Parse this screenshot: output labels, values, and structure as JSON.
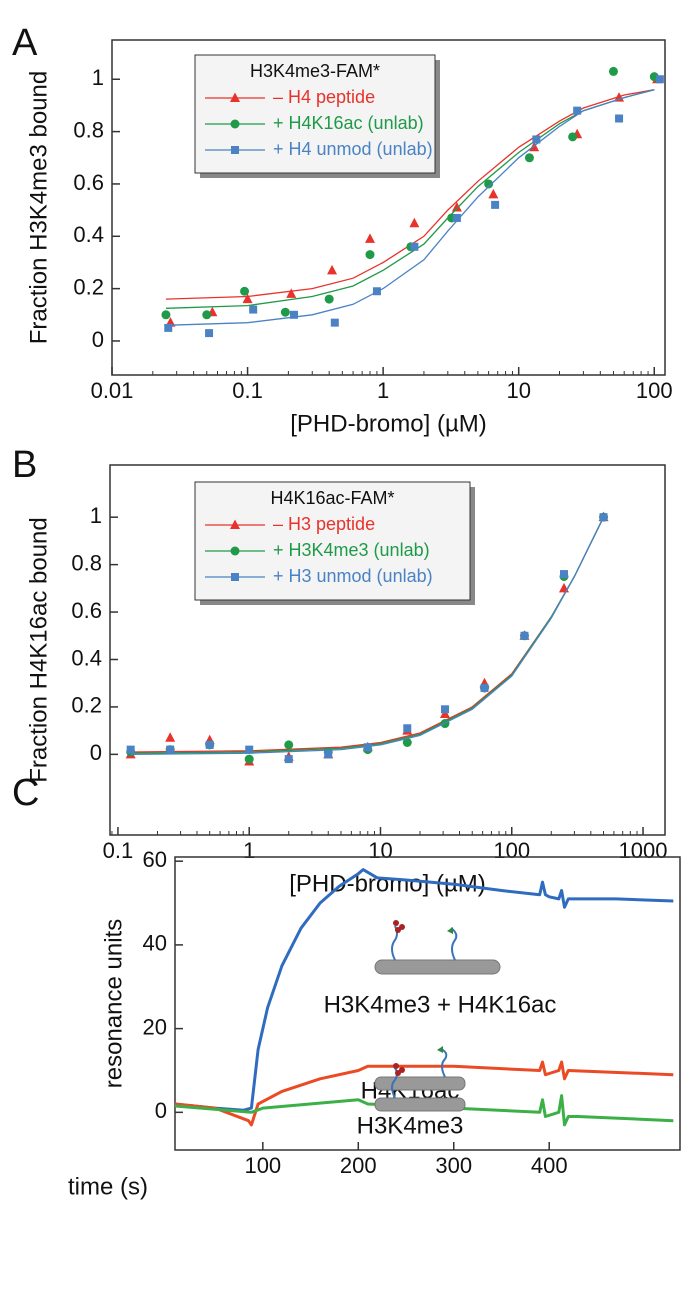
{
  "chart_data": [
    {
      "type": "scatter",
      "label": "A",
      "xscale": "log",
      "xlabel": "[PHD-bromo] (µM)",
      "ylabel": "Fraction H3K4me3 bound",
      "xlim": [
        0.01,
        120
      ],
      "xticks": [
        0.01,
        0.1,
        1,
        10,
        100
      ],
      "ylim": [
        -0.13,
        1.15
      ],
      "yticks": [
        0,
        0.2,
        0.4,
        0.6,
        0.8,
        1
      ],
      "grid": false,
      "legend": "upper left",
      "legend_title": "H3K4me3-FAM*",
      "series": [
        {
          "name": "– H4 peptide",
          "color": "#e8322b",
          "marker": "triangle",
          "x": [
            0.027,
            0.055,
            0.1,
            0.21,
            0.42,
            0.8,
            1.7,
            3.5,
            6.5,
            13,
            27,
            55,
            105
          ],
          "values": [
            0.07,
            0.11,
            0.16,
            0.18,
            0.27,
            0.39,
            0.45,
            0.51,
            0.56,
            0.74,
            0.79,
            0.93,
            1.0
          ],
          "fit": {
            "x": [
              0.025,
              0.1,
              0.3,
              0.6,
              1,
              2,
              3,
              5,
              10,
              20,
              30,
              60,
              100
            ],
            "values": [
              0.16,
              0.17,
              0.2,
              0.24,
              0.3,
              0.4,
              0.5,
              0.61,
              0.74,
              0.84,
              0.89,
              0.94,
              0.96
            ]
          }
        },
        {
          "name": "+ H4K16ac (unlab)",
          "color": "#1f9a48",
          "marker": "circle",
          "x": [
            0.025,
            0.05,
            0.095,
            0.19,
            0.4,
            0.8,
            1.6,
            3.2,
            6,
            12,
            25,
            50,
            100
          ],
          "values": [
            0.1,
            0.1,
            0.19,
            0.11,
            0.16,
            0.33,
            0.36,
            0.47,
            0.6,
            0.7,
            0.78,
            1.03,
            1.01
          ],
          "fit": {
            "x": [
              0.025,
              0.1,
              0.3,
              0.6,
              1,
              2,
              3,
              5,
              10,
              20,
              30,
              60,
              100
            ],
            "values": [
              0.125,
              0.135,
              0.17,
              0.21,
              0.27,
              0.37,
              0.47,
              0.59,
              0.72,
              0.83,
              0.88,
              0.93,
              0.96
            ]
          }
        },
        {
          "name": "+ H4 unmod (unlab)",
          "color": "#4a82c4",
          "marker": "square",
          "x": [
            0.026,
            0.052,
            0.11,
            0.22,
            0.44,
            0.9,
            1.7,
            3.5,
            6.7,
            13.5,
            27,
            55,
            110
          ],
          "values": [
            0.05,
            0.03,
            0.12,
            0.1,
            0.07,
            0.19,
            0.36,
            0.47,
            0.52,
            0.77,
            0.88,
            0.85,
            1.0
          ],
          "fit": {
            "x": [
              0.025,
              0.1,
              0.3,
              0.6,
              1,
              2,
              3,
              5,
              10,
              20,
              30,
              60,
              100
            ],
            "values": [
              0.06,
              0.07,
              0.1,
              0.14,
              0.2,
              0.31,
              0.42,
              0.55,
              0.7,
              0.82,
              0.88,
              0.93,
              0.96
            ]
          }
        }
      ]
    },
    {
      "type": "scatter",
      "label": "B",
      "xscale": "log",
      "xlabel": "[PHD-bromo] (µM)",
      "ylabel": "Fraction H4K16ac bound",
      "xlim": [
        0.087,
        1470
      ],
      "xticks": [
        0.1,
        1,
        10,
        100,
        1000
      ],
      "ylim": [
        -0.34,
        1.22
      ],
      "yticks": [
        0,
        0.2,
        0.4,
        0.6,
        0.8,
        1
      ],
      "grid": false,
      "legend": "upper left",
      "legend_title": "H4K16ac-FAM*",
      "series": [
        {
          "name": "– H3 peptide",
          "color": "#e8322b",
          "marker": "triangle",
          "x": [
            0.125,
            0.25,
            0.5,
            1,
            2,
            4,
            8,
            16,
            31,
            62,
            125,
            250,
            500
          ],
          "values": [
            0,
            0.07,
            0.06,
            -0.03,
            -0.01,
            0,
            0.03,
            0.1,
            0.17,
            0.3,
            0.5,
            0.7,
            1.0
          ],
          "fit": {
            "x": [
              0.125,
              1,
              5,
              10,
              20,
              50,
              100,
              200,
              300,
              500
            ],
            "values": [
              0.01,
              0.015,
              0.03,
              0.05,
              0.09,
              0.2,
              0.34,
              0.58,
              0.75,
              1.0
            ]
          }
        },
        {
          "name": "+ H3K4me3 (unlab)",
          "color": "#1f9a48",
          "marker": "circle",
          "x": [
            0.125,
            0.25,
            0.5,
            1,
            2,
            4,
            8,
            16,
            31,
            62,
            125,
            250,
            500
          ],
          "values": [
            0.01,
            0.02,
            0.04,
            -0.02,
            0.04,
            0.01,
            0.02,
            0.05,
            0.13,
            0.28,
            0.5,
            0.75,
            1.0
          ],
          "fit": {
            "x": [
              0.125,
              1,
              5,
              10,
              20,
              50,
              100,
              200,
              300,
              500
            ],
            "values": [
              0.005,
              0.01,
              0.025,
              0.045,
              0.085,
              0.195,
              0.335,
              0.58,
              0.75,
              1.0
            ]
          }
        },
        {
          "name": "+ H3 unmod (unlab)",
          "color": "#4a82c4",
          "marker": "square",
          "x": [
            0.125,
            0.25,
            0.5,
            1,
            2,
            4,
            8,
            16,
            31,
            62,
            125,
            250,
            500
          ],
          "values": [
            0.02,
            0.02,
            0.04,
            0.02,
            -0.02,
            0,
            0.03,
            0.11,
            0.19,
            0.28,
            0.5,
            0.76,
            1.0
          ],
          "fit": {
            "x": [
              0.125,
              1,
              5,
              10,
              20,
              50,
              100,
              200,
              300,
              500
            ],
            "values": [
              0.0,
              0.005,
              0.02,
              0.04,
              0.08,
              0.19,
              0.33,
              0.575,
              0.75,
              1.0
            ]
          }
        }
      ]
    },
    {
      "type": "line",
      "label": "C",
      "xlabel": "time (s)",
      "ylabel": "resonance units",
      "xlim": [
        8,
        537
      ],
      "xticks": [
        100,
        200,
        300,
        400
      ],
      "ylim": [
        -9,
        61
      ],
      "yticks": [
        0,
        20,
        40,
        60
      ],
      "grid": false,
      "annotations": [
        "H3K4me3 + H4K16ac",
        "H4K16ac",
        "H3K4me3"
      ],
      "series": [
        {
          "name": "H3K4me3 + H4K16ac",
          "color": "#2f6bbf",
          "x": [
            8,
            50,
            80,
            88,
            95,
            105,
            120,
            140,
            160,
            180,
            200,
            205,
            220,
            250,
            300,
            350,
            390,
            393,
            396,
            400,
            410,
            413,
            416,
            420,
            430,
            470,
            530
          ],
          "values": [
            2,
            1,
            0.5,
            1,
            15,
            25,
            35,
            44,
            50,
            54,
            57,
            58,
            56,
            55.5,
            54.5,
            53,
            52,
            55,
            52,
            51.5,
            51,
            53,
            49,
            51,
            51,
            51,
            50.5
          ]
        },
        {
          "name": "H4K16ac",
          "color": "#ea4a24",
          "x": [
            8,
            50,
            85,
            88,
            95,
            120,
            160,
            200,
            210,
            300,
            390,
            393,
            396,
            410,
            413,
            416,
            420,
            530
          ],
          "values": [
            2,
            1,
            -2,
            -3,
            2,
            5,
            8,
            10,
            11,
            11,
            10,
            12,
            9,
            10,
            12,
            8,
            10,
            9
          ]
        },
        {
          "name": "H3K4me3",
          "color": "#3cb047",
          "x": [
            8,
            88,
            100,
            200,
            210,
            300,
            390,
            393,
            396,
            410,
            413,
            416,
            420,
            430,
            530
          ],
          "values": [
            1.5,
            0,
            1,
            3,
            2,
            1,
            0,
            3,
            -1,
            0,
            4,
            -3,
            -1,
            -1,
            -2
          ]
        }
      ]
    }
  ]
}
